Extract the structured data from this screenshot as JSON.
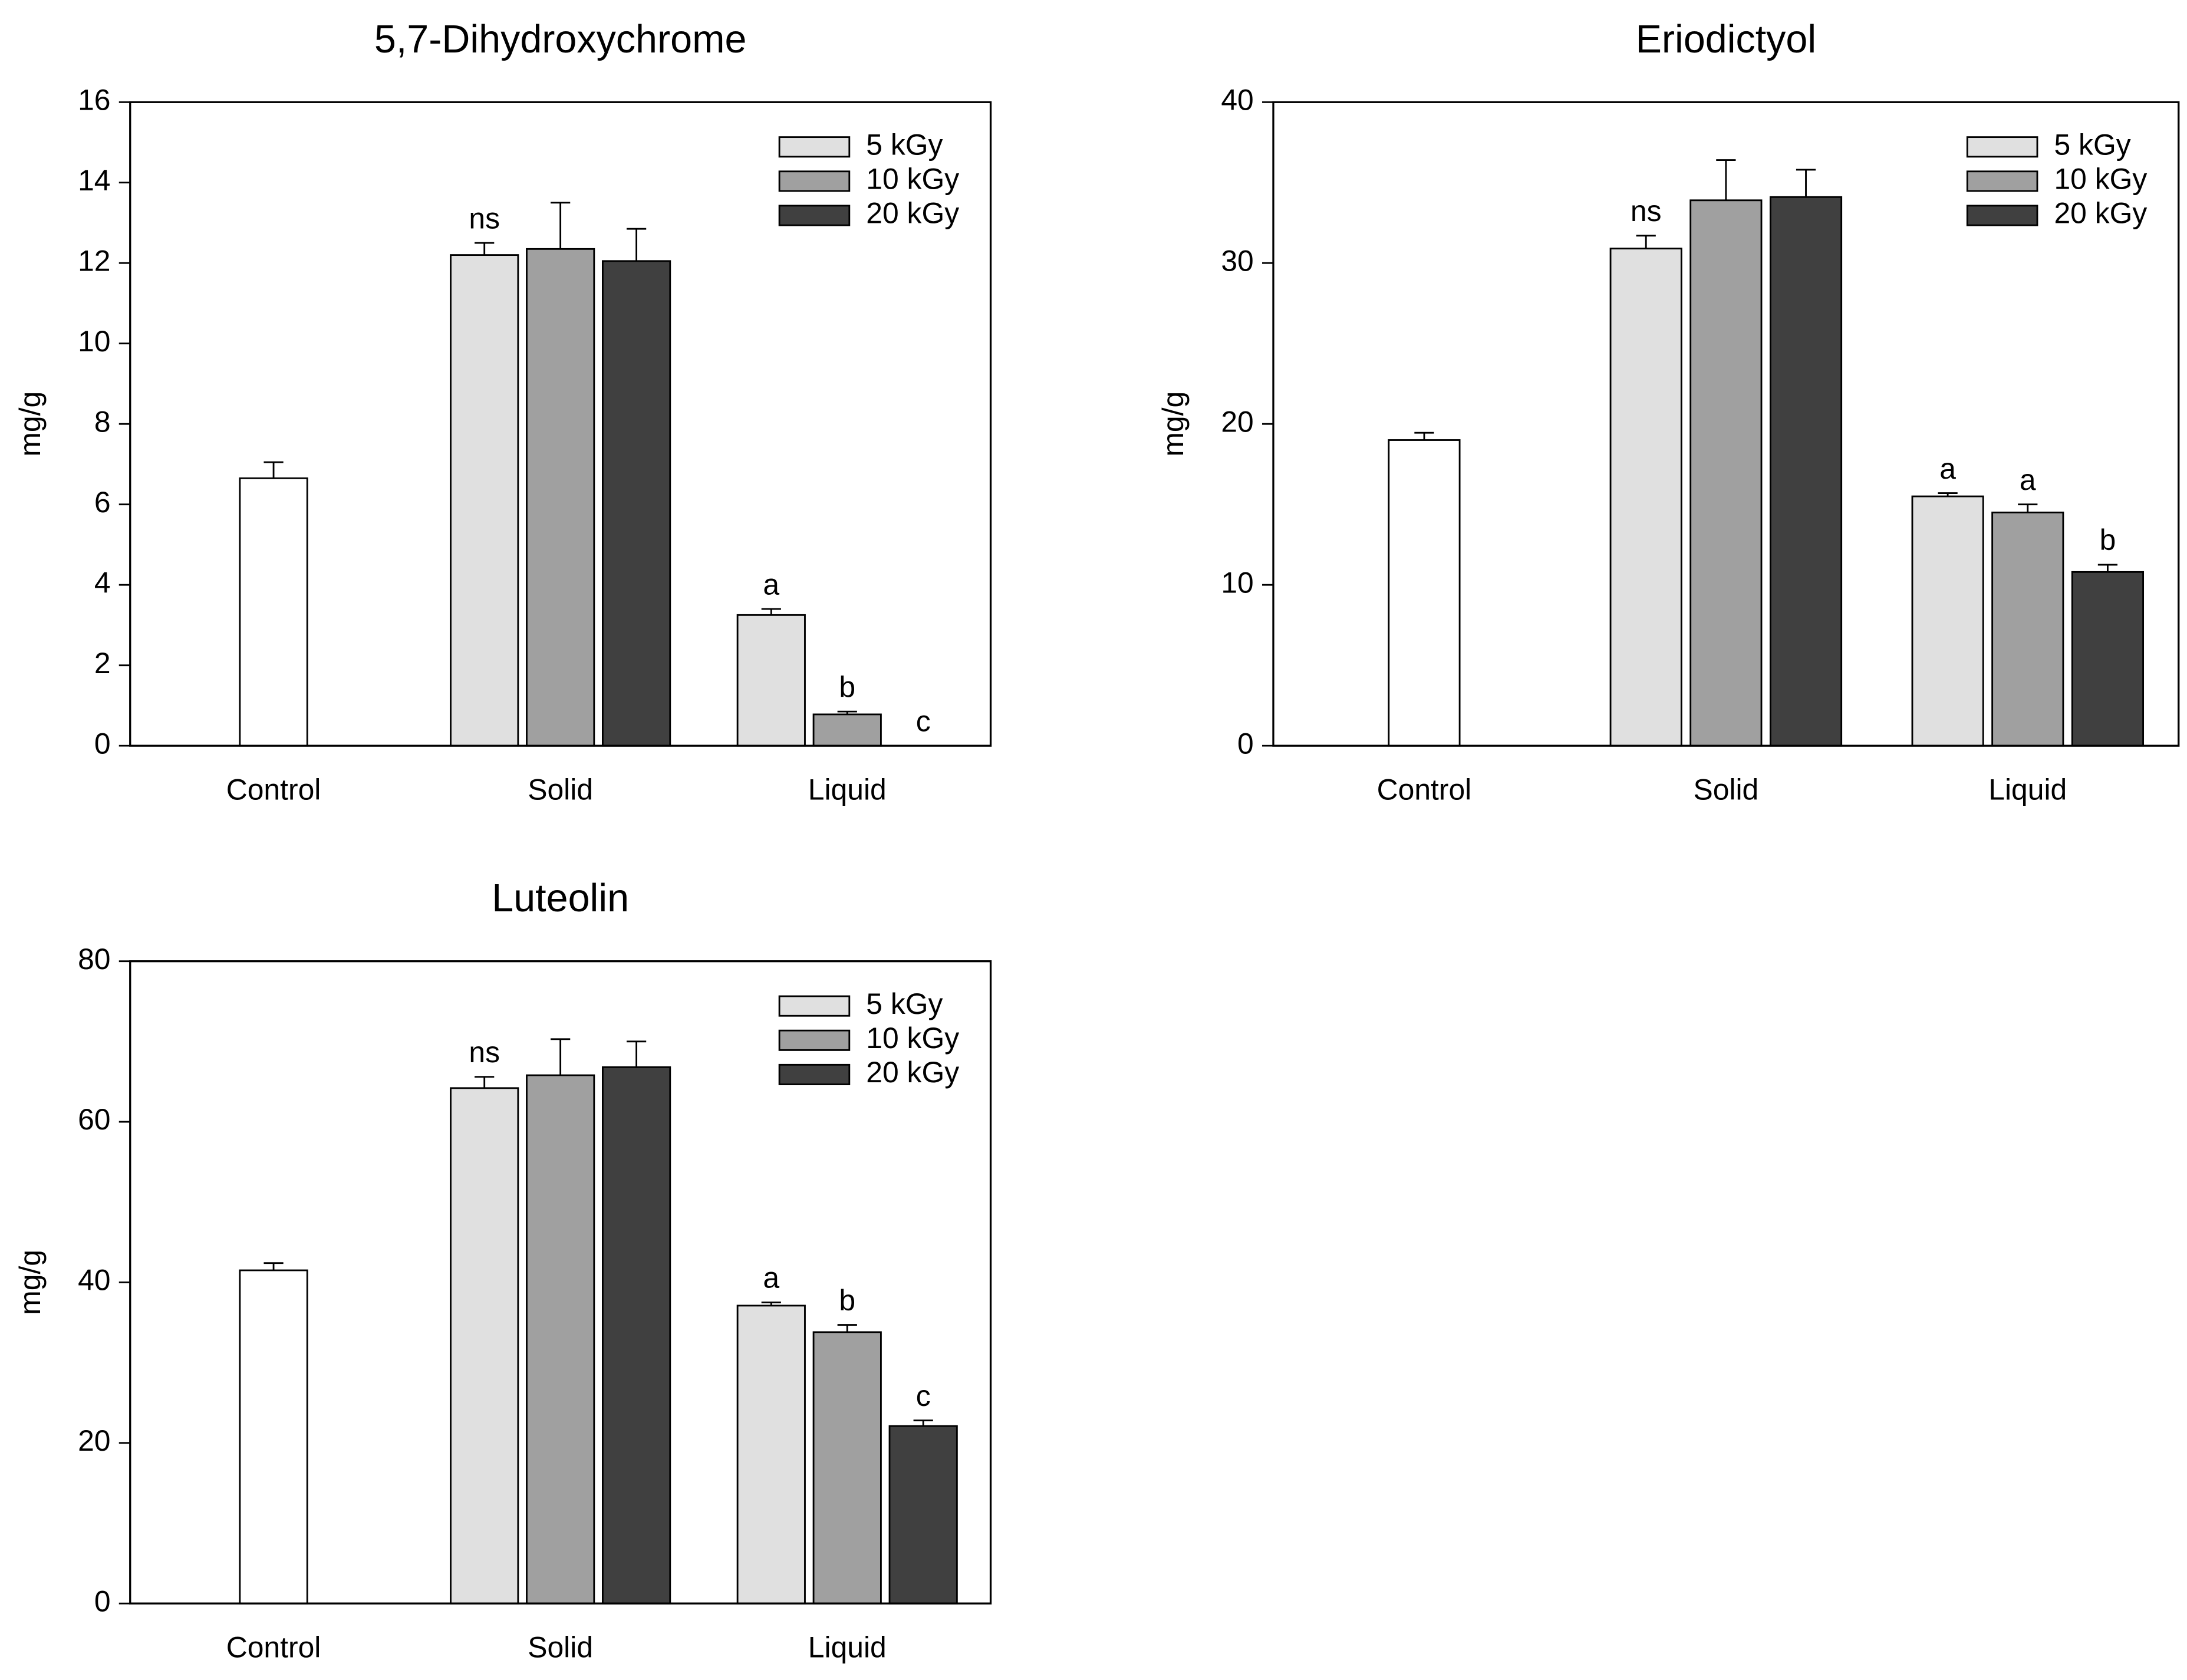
{
  "chart_data": [
    {
      "type": "bar",
      "title": "5,7-Dihydroxychrome",
      "y_label": "mg/g",
      "categories": [
        "Control",
        "Solid",
        "Liquid"
      ],
      "control_bar": {
        "value": 6.65,
        "error": 0.4,
        "color": "#ffffff"
      },
      "series": [
        {
          "name": "5 kGy",
          "color": "#e0e0e0",
          "values": [
            null,
            12.2,
            3.25
          ],
          "errors": [
            null,
            0.3,
            0.15
          ],
          "labels": [
            null,
            "ns",
            "a"
          ]
        },
        {
          "name": "10 kGy",
          "color": "#a0a0a0",
          "values": [
            null,
            12.35,
            0.78
          ],
          "errors": [
            null,
            1.15,
            0.07
          ],
          "labels": [
            null,
            null,
            "b"
          ]
        },
        {
          "name": "20 kGy",
          "color": "#404040",
          "values": [
            null,
            12.05,
            0
          ],
          "errors": [
            null,
            0.8,
            null
          ],
          "labels": [
            null,
            null,
            "c"
          ]
        }
      ],
      "ylim": [
        0,
        16
      ],
      "yticks": [
        0,
        2,
        4,
        6,
        8,
        10,
        12,
        14,
        16
      ],
      "legend": "upper right"
    },
    {
      "type": "bar",
      "title": "Eriodictyol",
      "y_label": "mg/g",
      "categories": [
        "Control",
        "Solid",
        "Liquid"
      ],
      "control_bar": {
        "value": 19.0,
        "error": 0.45,
        "color": "#ffffff"
      },
      "series": [
        {
          "name": "5 kGy",
          "color": "#e0e0e0",
          "values": [
            null,
            30.9,
            15.5
          ],
          "errors": [
            null,
            0.8,
            0.2
          ],
          "labels": [
            null,
            "ns",
            "a"
          ]
        },
        {
          "name": "10 kGy",
          "color": "#a0a0a0",
          "values": [
            null,
            33.9,
            14.5
          ],
          "errors": [
            null,
            2.5,
            0.5
          ],
          "labels": [
            null,
            null,
            "a"
          ]
        },
        {
          "name": "20 kGy",
          "color": "#404040",
          "values": [
            null,
            34.1,
            10.8
          ],
          "errors": [
            null,
            1.7,
            0.45
          ],
          "labels": [
            null,
            null,
            "b"
          ]
        }
      ],
      "ylim": [
        0,
        40
      ],
      "yticks": [
        0,
        10,
        20,
        30,
        40
      ],
      "legend": "upper right"
    },
    {
      "type": "bar",
      "title": "Luteolin",
      "y_label": "mg/g",
      "categories": [
        "Control",
        "Solid",
        "Liquid"
      ],
      "control_bar": {
        "value": 41.5,
        "error": 0.9,
        "color": "#ffffff"
      },
      "series": [
        {
          "name": "5 kGy",
          "color": "#e0e0e0",
          "values": [
            null,
            64.2,
            37.1
          ],
          "errors": [
            null,
            1.4,
            0.4
          ],
          "labels": [
            null,
            "ns",
            "a"
          ]
        },
        {
          "name": "10 kGy",
          "color": "#a0a0a0",
          "values": [
            null,
            65.8,
            33.8
          ],
          "errors": [
            null,
            4.5,
            0.9
          ],
          "labels": [
            null,
            null,
            "b"
          ]
        },
        {
          "name": "20 kGy",
          "color": "#404040",
          "values": [
            null,
            66.8,
            22.1
          ],
          "errors": [
            null,
            3.2,
            0.7
          ],
          "labels": [
            null,
            null,
            "c"
          ]
        }
      ],
      "ylim": [
        0,
        80
      ],
      "yticks": [
        0,
        20,
        40,
        60,
        80
      ],
      "legend": "upper right"
    }
  ]
}
